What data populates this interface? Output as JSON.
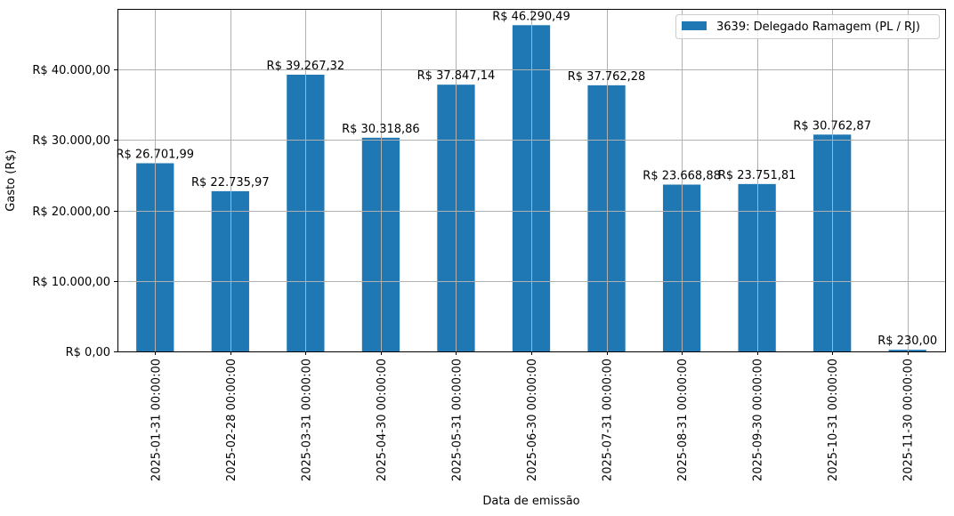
{
  "chart_data": {
    "type": "bar",
    "title": "",
    "xlabel": "Data de emissão",
    "ylabel": "Gasto (R$)",
    "ylim": [
      0,
      48600
    ],
    "grid": true,
    "legend_position": "upper right",
    "categories": [
      "2025-01-31 00:00:00",
      "2025-02-28 00:00:00",
      "2025-03-31 00:00:00",
      "2025-04-30 00:00:00",
      "2025-05-31 00:00:00",
      "2025-06-30 00:00:00",
      "2025-07-31 00:00:00",
      "2025-08-31 00:00:00",
      "2025-09-30 00:00:00",
      "2025-10-31 00:00:00",
      "2025-11-30 00:00:00"
    ],
    "series": [
      {
        "name": "3639: Delegado Ramagem (PL / RJ)",
        "color": "#1f77b4",
        "values": [
          26701.99,
          22735.97,
          39267.32,
          30318.86,
          37847.14,
          46290.49,
          37762.28,
          23668.88,
          23751.81,
          30762.87,
          230.0
        ],
        "labels": [
          "R$ 26.701,99",
          "R$ 22.735,97",
          "R$ 39.267,32",
          "R$ 30.318,86",
          "R$ 37.847,14",
          "R$ 46.290,49",
          "R$ 37.762,28",
          "R$ 23.668,88",
          "R$ 23.751,81",
          "R$ 30.762,87",
          "R$ 230,00"
        ]
      }
    ],
    "yticks": [
      0,
      10000,
      20000,
      30000,
      40000
    ],
    "ytick_labels": [
      "R$ 0,00",
      "R$ 10.000,00",
      "R$ 20.000,00",
      "R$ 30.000,00",
      "R$ 40.000,00"
    ]
  },
  "legend": {
    "label": "3639: Delegado Ramagem (PL / RJ)"
  },
  "axes": {
    "xlabel": "Data de emissão",
    "ylabel": "Gasto (R$)"
  }
}
